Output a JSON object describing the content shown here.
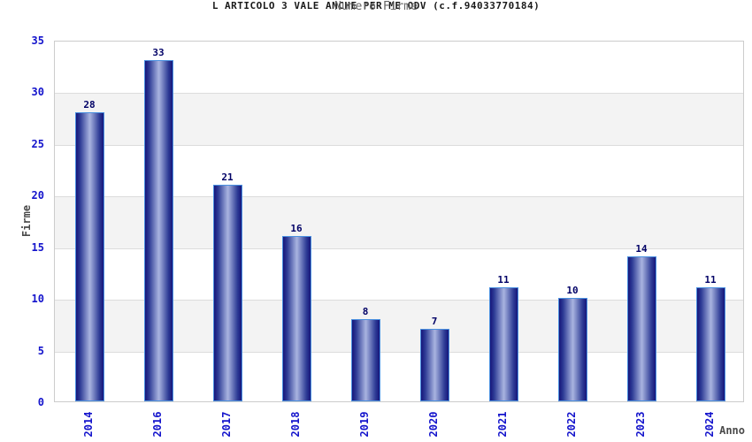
{
  "chart_data": {
    "type": "bar",
    "title": "L ARTICOLO 3 VALE ANCHE PER ME ODV (c.f.94033770184)",
    "subtitle": "Numero Firme",
    "xlabel": "Anno",
    "ylabel": "Firme",
    "categories": [
      "2014",
      "2016",
      "2017",
      "2018",
      "2019",
      "2020",
      "2021",
      "2022",
      "2023",
      "2024"
    ],
    "values": [
      28,
      33,
      21,
      16,
      8,
      7,
      11,
      10,
      14,
      11
    ],
    "ylim": [
      0,
      35
    ],
    "yticks": [
      0,
      5,
      10,
      15,
      20,
      25,
      30,
      35
    ],
    "gray_bands": [
      [
        5,
        10
      ],
      [
        15,
        20
      ],
      [
        25,
        30
      ]
    ],
    "grid": "horizontal",
    "legend": "none",
    "colors": {
      "title": "#1a1a1a",
      "subtitle": "#666666",
      "axis_title": "#4a4a4a",
      "tick_label": "#1414cc",
      "value_label": "#000066",
      "bar_border": "#4a90e0",
      "bar_dark": "#16167a",
      "bar_mid": "#2e3c96",
      "bar_light": "#a9b4e0",
      "band": "#f3f3f3",
      "gridline": "#dcdcdc",
      "plot_border": "#cccccc"
    }
  }
}
